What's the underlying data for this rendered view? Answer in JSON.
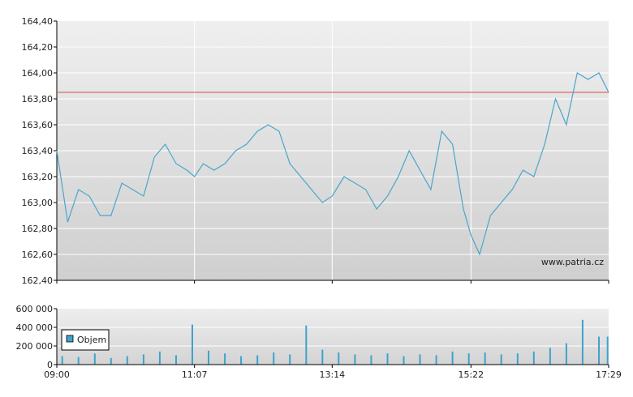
{
  "watermark": "www.patria.cz",
  "colors": {
    "price_line": "#4aa6cc",
    "reference_line": "#d44b4b",
    "volume_bar": "#3fa2cd",
    "grid": "#ffffff",
    "axis": "#000000"
  },
  "chart_data": [
    {
      "type": "line",
      "title": "",
      "xlabel": "",
      "ylabel": "",
      "ylim": [
        162.4,
        164.4
      ],
      "y_ticks": [
        "162,40",
        "162,60",
        "162,80",
        "163,00",
        "163,20",
        "163,40",
        "163,60",
        "163,80",
        "164,00",
        "164,20",
        "164,40"
      ],
      "x_ticks": [
        "09:00",
        "11:07",
        "13:14",
        "15:22",
        "17:29"
      ],
      "grid": true,
      "reference_line": 163.85,
      "series": [
        {
          "x": [
            "09:00",
            "09:10",
            "09:20",
            "09:30",
            "09:40",
            "09:50",
            "10:00",
            "10:10",
            "10:20",
            "10:30",
            "10:40",
            "10:50",
            "11:00",
            "11:07",
            "11:15",
            "11:25",
            "11:35",
            "11:45",
            "11:55",
            "12:05",
            "12:15",
            "12:25",
            "12:35",
            "12:45",
            "12:55",
            "13:05",
            "13:14",
            "13:25",
            "13:35",
            "13:45",
            "13:55",
            "14:05",
            "14:15",
            "14:25",
            "14:35",
            "14:45",
            "14:55",
            "15:05",
            "15:15",
            "15:22",
            "15:30",
            "15:40",
            "15:50",
            "16:00",
            "16:10",
            "16:20",
            "16:30",
            "16:40",
            "16:50",
            "17:00",
            "17:10",
            "17:20",
            "17:29"
          ],
          "values": [
            163.4,
            162.85,
            163.1,
            163.05,
            162.9,
            162.9,
            163.15,
            163.1,
            163.05,
            163.35,
            163.45,
            163.3,
            163.25,
            163.2,
            163.3,
            163.25,
            163.3,
            163.4,
            163.45,
            163.55,
            163.6,
            163.55,
            163.3,
            163.2,
            163.1,
            163.0,
            163.05,
            163.2,
            163.15,
            163.1,
            162.95,
            163.05,
            163.2,
            163.4,
            163.25,
            163.1,
            163.55,
            163.45,
            162.95,
            162.75,
            162.6,
            162.9,
            163.0,
            163.1,
            163.25,
            163.2,
            163.45,
            163.8,
            163.6,
            164.0,
            163.95,
            164.0,
            163.85
          ]
        }
      ]
    },
    {
      "type": "bar",
      "title": "",
      "xlabel": "",
      "ylabel": "",
      "ylim": [
        0,
        600000
      ],
      "y_ticks": [
        "0",
        "200 000",
        "400 000",
        "600 000"
      ],
      "x_ticks": [
        "09:00",
        "11:07",
        "13:14",
        "15:22",
        "17:29"
      ],
      "legend": {
        "label": "Objem",
        "placement": "left"
      },
      "series": [
        {
          "name": "Objem",
          "x": [
            "09:05",
            "09:20",
            "09:35",
            "09:50",
            "10:05",
            "10:20",
            "10:35",
            "10:50",
            "11:05",
            "11:20",
            "11:35",
            "11:50",
            "12:05",
            "12:20",
            "12:35",
            "12:50",
            "13:05",
            "13:20",
            "13:35",
            "13:50",
            "14:05",
            "14:20",
            "14:35",
            "14:50",
            "15:05",
            "15:20",
            "15:35",
            "15:50",
            "16:05",
            "16:20",
            "16:35",
            "16:50",
            "17:05",
            "17:20",
            "17:28"
          ],
          "values": [
            90000,
            80000,
            120000,
            70000,
            90000,
            110000,
            140000,
            100000,
            430000,
            150000,
            120000,
            90000,
            100000,
            130000,
            110000,
            420000,
            160000,
            130000,
            110000,
            100000,
            120000,
            90000,
            110000,
            100000,
            140000,
            120000,
            130000,
            110000,
            120000,
            140000,
            180000,
            230000,
            480000,
            300000,
            300000
          ]
        }
      ]
    }
  ]
}
